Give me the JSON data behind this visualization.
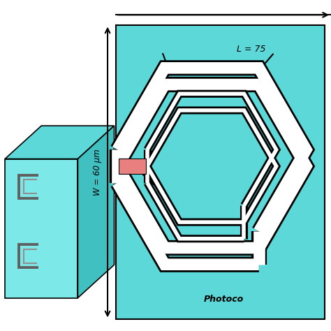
{
  "bg_color": "#ffffff",
  "cyan_color": "#5dd8d8",
  "cyan_light": "#7de8e8",
  "cyan_dark": "#40c0c0",
  "cyan_darker": "#30a8a8",
  "gray_metal": "#909090",
  "gray_dark": "#606060",
  "gray_light": "#b0b0b0",
  "white_trace": "#ffffff",
  "black": "#000000",
  "pink_rect": "#e88080",
  "text_color": "#000000",
  "label_W": "W = 60 μm",
  "label_L": "L = 75",
  "label_photocond": "Photoco",
  "fig_width": 4.74,
  "fig_height": 4.74,
  "dpi": 100
}
